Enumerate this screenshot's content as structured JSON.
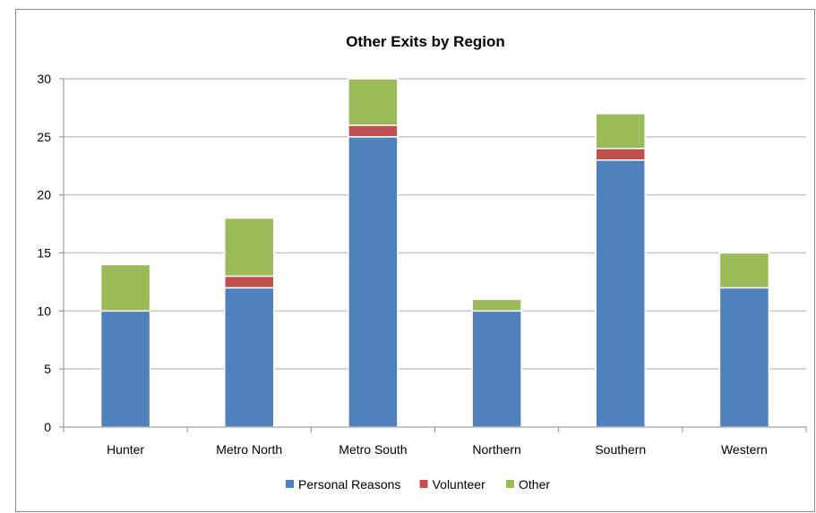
{
  "chart_data": {
    "type": "bar",
    "stacked": true,
    "title": "Other Exits by Region",
    "xlabel": "",
    "ylabel": "",
    "categories": [
      "Hunter",
      "Metro North",
      "Metro South",
      "Northern",
      "Southern",
      "Western"
    ],
    "series": [
      {
        "name": "Personal Reasons",
        "color": "#4F81BD",
        "values": [
          10,
          12,
          25,
          10,
          23,
          12
        ]
      },
      {
        "name": "Volunteer",
        "color": "#C0504D",
        "values": [
          0,
          1,
          1,
          0,
          1,
          0
        ]
      },
      {
        "name": "Other",
        "color": "#9BBB59",
        "values": [
          4,
          5,
          4,
          1,
          3,
          3
        ]
      }
    ],
    "ylim": [
      0,
      30
    ],
    "yticks": [
      0,
      5,
      10,
      15,
      20,
      25,
      30
    ],
    "grid": true,
    "legend_position": "bottom"
  }
}
